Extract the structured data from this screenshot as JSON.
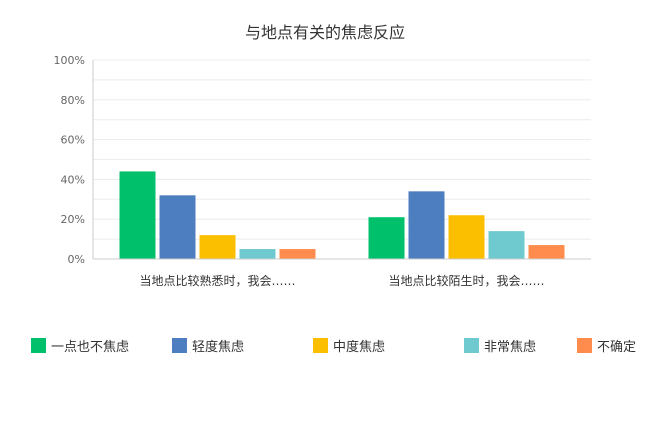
{
  "chart_data": {
    "type": "bar",
    "title": "与地点有关的焦虑反应",
    "categories": [
      "当地点比较熟悉时，我会……",
      "当地点比较陌生时，我会……"
    ],
    "yticks": [
      "0%",
      "20%",
      "40%",
      "60%",
      "80%",
      "100%"
    ],
    "ylim": [
      0,
      100
    ],
    "grid": true,
    "legend_position": "bottom",
    "series": [
      {
        "name": "一点也不焦虑",
        "color": "#00c06b",
        "values": [
          44,
          21
        ]
      },
      {
        "name": "轻度焦虑",
        "color": "#4d7ebf",
        "values": [
          32,
          34
        ]
      },
      {
        "name": "中度焦虑",
        "color": "#fbbf00",
        "values": [
          12,
          22
        ]
      },
      {
        "name": "非常焦虑",
        "color": "#6ecacf",
        "values": [
          5,
          14
        ]
      },
      {
        "name": "不确定",
        "color": "#ff8c4c",
        "values": [
          5,
          7
        ]
      }
    ]
  }
}
